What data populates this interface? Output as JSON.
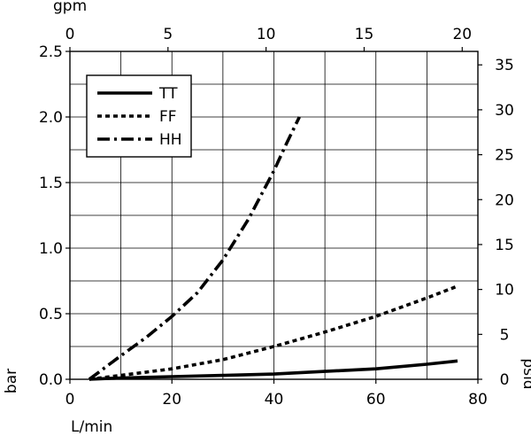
{
  "chart_data": {
    "type": "line",
    "title": "",
    "xlabel": "L/min",
    "ylabel": "bar",
    "x2label": "gpm",
    "y2label": "psid",
    "xlim": [
      0,
      80
    ],
    "ylim": [
      0,
      2.5
    ],
    "x2lim": [
      0,
      20.8
    ],
    "y2lim": [
      0,
      36.5
    ],
    "grid": true,
    "legend_position": "top-left",
    "xticks": [
      "0",
      "20",
      "40",
      "60",
      "80"
    ],
    "yticks": [
      "0.0",
      "0.5",
      "1.0",
      "1.5",
      "2.0",
      "2.5"
    ],
    "x2ticks": [
      "0",
      "5",
      "10",
      "15",
      "20"
    ],
    "y2ticks": [
      "0",
      "5",
      "10",
      "15",
      "20",
      "25",
      "30",
      "35"
    ],
    "series": [
      {
        "name": "TT",
        "style": "solid",
        "x": [
          3.8,
          10,
          20,
          30,
          40,
          50,
          60,
          70,
          76
        ],
        "y": [
          0.0,
          0.01,
          0.02,
          0.03,
          0.04,
          0.06,
          0.08,
          0.115,
          0.14
        ]
      },
      {
        "name": "FF",
        "style": "dotted",
        "x": [
          3.8,
          10,
          20,
          30,
          40,
          50,
          60,
          70,
          76
        ],
        "y": [
          0.0,
          0.03,
          0.08,
          0.15,
          0.25,
          0.36,
          0.48,
          0.62,
          0.71
        ]
      },
      {
        "name": "HH",
        "style": "dashdot",
        "x": [
          3.8,
          10,
          15,
          20,
          25,
          30,
          35,
          40,
          42.5,
          45
        ],
        "y": [
          0.0,
          0.18,
          0.32,
          0.48,
          0.66,
          0.91,
          1.22,
          1.59,
          1.8,
          2.0
        ]
      }
    ]
  }
}
